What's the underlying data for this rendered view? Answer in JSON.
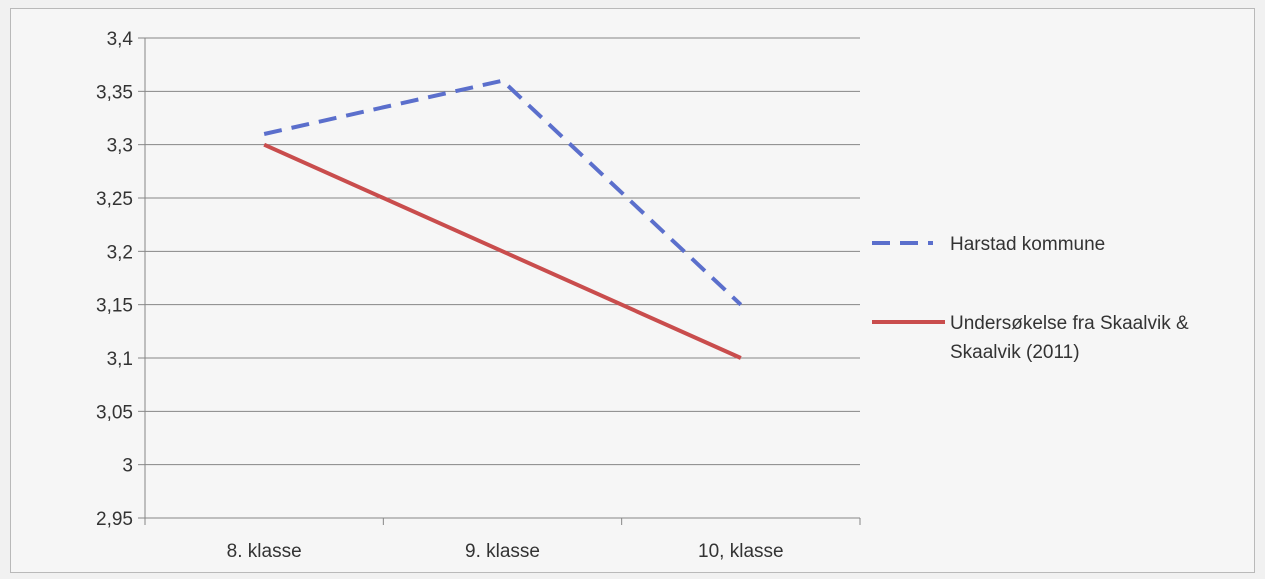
{
  "chart_data": {
    "type": "line",
    "categories": [
      "8. klasse",
      "9. klasse",
      "10, klasse"
    ],
    "series": [
      {
        "name": "Harstad kommune",
        "values": [
          3.31,
          3.36,
          3.15
        ],
        "color": "#5b6fcc",
        "dashed": true
      },
      {
        "name": "Undersøkelse fra Skaalvik & Skaalvik (2011)",
        "name_lines": [
          "Undersøkelse fra Skaalvik &",
          "Skaalvik (2011)"
        ],
        "values": [
          3.3,
          3.2,
          3.1
        ],
        "color": "#c94d4d",
        "dashed": false
      }
    ],
    "yticks": [
      "3,4",
      "3,35",
      "3,3",
      "3,25",
      "3,2",
      "3,15",
      "3,1",
      "3,05",
      "3",
      "2,95"
    ],
    "ylim": [
      2.95,
      3.4
    ],
    "grid": true,
    "legend_position": "right",
    "title": "",
    "xlabel": "",
    "ylabel": ""
  }
}
